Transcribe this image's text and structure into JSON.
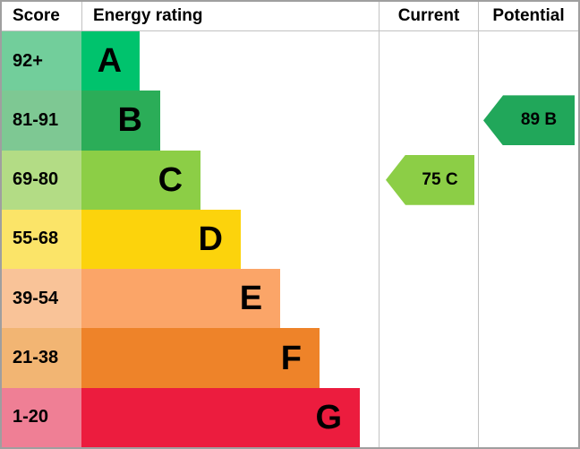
{
  "headers": {
    "score": "Score",
    "rating": "Energy rating",
    "current": "Current",
    "potential": "Potential"
  },
  "bands": [
    {
      "score": "92+",
      "letter": "A",
      "width_pct": 19.6,
      "bar_color": "#00c36d",
      "score_bg": "#72ce9b"
    },
    {
      "score": "81-91",
      "letter": "B",
      "width_pct": 26.5,
      "bar_color": "#2bad58",
      "score_bg": "#7ec893"
    },
    {
      "score": "69-80",
      "letter": "C",
      "width_pct": 40.1,
      "bar_color": "#8cce46",
      "score_bg": "#b3dc85"
    },
    {
      "score": "55-68",
      "letter": "D",
      "width_pct": 53.6,
      "bar_color": "#fcd30c",
      "score_bg": "#fbe468"
    },
    {
      "score": "39-54",
      "letter": "E",
      "width_pct": 66.9,
      "bar_color": "#fba568",
      "score_bg": "#f9c398"
    },
    {
      "score": "21-38",
      "letter": "F",
      "width_pct": 80.1,
      "bar_color": "#ee8329",
      "score_bg": "#f2b573"
    },
    {
      "score": "1-20",
      "letter": "G",
      "width_pct": 93.7,
      "bar_color": "#ec1c3e",
      "score_bg": "#ef7f95"
    }
  ],
  "current": {
    "label": "75 C",
    "value": 75,
    "band": "C",
    "color": "#8cce46"
  },
  "potential": {
    "label": "89 B",
    "value": 89,
    "band": "B",
    "color": "#21a75a"
  },
  "chart_data": {
    "type": "bar",
    "title": "Energy rating",
    "categories": [
      "A",
      "B",
      "C",
      "D",
      "E",
      "F",
      "G"
    ],
    "score_ranges": [
      "92+",
      "81-91",
      "69-80",
      "55-68",
      "39-54",
      "21-38",
      "1-20"
    ],
    "bar_widths_relative_pct": [
      19.6,
      26.5,
      40.1,
      53.6,
      66.9,
      80.1,
      93.7
    ],
    "bar_colors": [
      "#00c36d",
      "#2bad58",
      "#8cce46",
      "#fcd30c",
      "#fba568",
      "#ee8329",
      "#ec1c3e"
    ],
    "columns": [
      "Score",
      "Energy rating",
      "Current",
      "Potential"
    ],
    "current_rating": {
      "value": 75,
      "band": "C"
    },
    "potential_rating": {
      "value": 89,
      "band": "B"
    },
    "orientation": "horizontal",
    "legend": "none"
  }
}
